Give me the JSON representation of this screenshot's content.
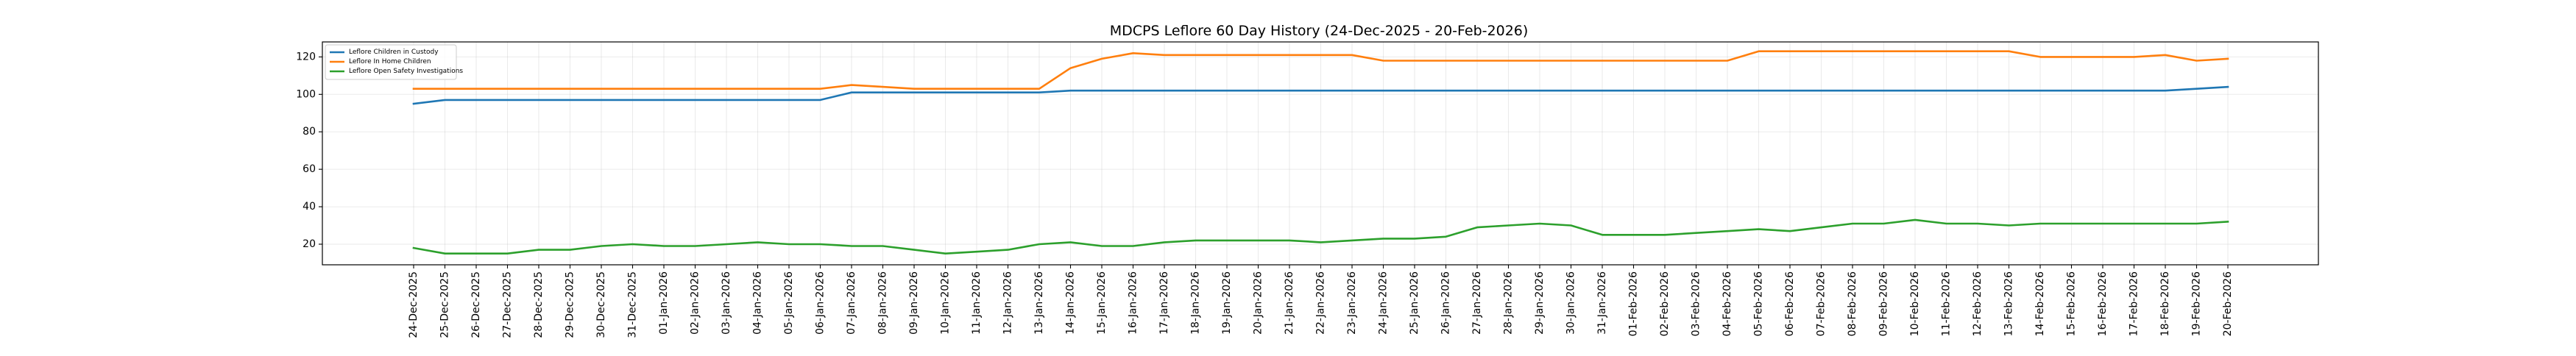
{
  "chart_data": {
    "type": "line",
    "title": "MDCPS Leflore 60 Day History (24-Dec-2025 - 20-Feb-2026)",
    "xlabel": "",
    "ylabel": "",
    "ylim": [
      9,
      128
    ],
    "yticks": [
      20,
      40,
      60,
      80,
      100,
      120
    ],
    "grid": true,
    "legend_position": "upper-left",
    "x": [
      "24-Dec-2025",
      "25-Dec-2025",
      "26-Dec-2025",
      "27-Dec-2025",
      "28-Dec-2025",
      "29-Dec-2025",
      "30-Dec-2025",
      "31-Dec-2025",
      "01-Jan-2026",
      "02-Jan-2026",
      "03-Jan-2026",
      "04-Jan-2026",
      "05-Jan-2026",
      "06-Jan-2026",
      "07-Jan-2026",
      "08-Jan-2026",
      "09-Jan-2026",
      "10-Jan-2026",
      "11-Jan-2026",
      "12-Jan-2026",
      "13-Jan-2026",
      "14-Jan-2026",
      "15-Jan-2026",
      "16-Jan-2026",
      "17-Jan-2026",
      "18-Jan-2026",
      "19-Jan-2026",
      "20-Jan-2026",
      "21-Jan-2026",
      "22-Jan-2026",
      "23-Jan-2026",
      "24-Jan-2026",
      "25-Jan-2026",
      "26-Jan-2026",
      "27-Jan-2026",
      "28-Jan-2026",
      "29-Jan-2026",
      "30-Jan-2026",
      "31-Jan-2026",
      "01-Feb-2026",
      "02-Feb-2026",
      "03-Feb-2026",
      "04-Feb-2026",
      "05-Feb-2026",
      "06-Feb-2026",
      "07-Feb-2026",
      "08-Feb-2026",
      "09-Feb-2026",
      "10-Feb-2026",
      "11-Feb-2026",
      "12-Feb-2026",
      "13-Feb-2026",
      "14-Feb-2026",
      "15-Feb-2026",
      "16-Feb-2026",
      "17-Feb-2026",
      "18-Feb-2026",
      "19-Feb-2026",
      "20-Feb-2026"
    ],
    "series": [
      {
        "name": "Leflore Children in Custody",
        "color": "#1f77b4",
        "values": [
          95,
          97,
          97,
          97,
          97,
          97,
          97,
          97,
          97,
          97,
          97,
          97,
          97,
          97,
          101,
          101,
          101,
          101,
          101,
          101,
          101,
          102,
          102,
          102,
          102,
          102,
          102,
          102,
          102,
          102,
          102,
          102,
          102,
          102,
          102,
          102,
          102,
          102,
          102,
          102,
          102,
          102,
          102,
          102,
          102,
          102,
          102,
          102,
          102,
          102,
          102,
          102,
          102,
          102,
          102,
          102,
          102,
          103,
          104
        ]
      },
      {
        "name": "Leflore In Home Children",
        "color": "#ff7f0e",
        "values": [
          103,
          103,
          103,
          103,
          103,
          103,
          103,
          103,
          103,
          103,
          103,
          103,
          103,
          103,
          105,
          104,
          103,
          103,
          103,
          103,
          103,
          114,
          119,
          122,
          121,
          121,
          121,
          121,
          121,
          121,
          121,
          118,
          118,
          118,
          118,
          118,
          118,
          118,
          118,
          118,
          118,
          118,
          118,
          123,
          123,
          123,
          123,
          123,
          123,
          123,
          123,
          123,
          120,
          120,
          120,
          120,
          121,
          118,
          119
        ]
      },
      {
        "name": "Leflore Open Safety Investigations",
        "color": "#2ca02c",
        "values": [
          18,
          15,
          15,
          15,
          17,
          17,
          19,
          20,
          19,
          19,
          20,
          21,
          20,
          20,
          19,
          19,
          17,
          15,
          16,
          17,
          20,
          21,
          19,
          19,
          21,
          22,
          22,
          22,
          22,
          21,
          22,
          23,
          23,
          24,
          29,
          30,
          31,
          30,
          25,
          25,
          25,
          26,
          27,
          28,
          27,
          29,
          31,
          31,
          33,
          31,
          31,
          30,
          31,
          31,
          31,
          31,
          31,
          31,
          32
        ]
      }
    ]
  }
}
